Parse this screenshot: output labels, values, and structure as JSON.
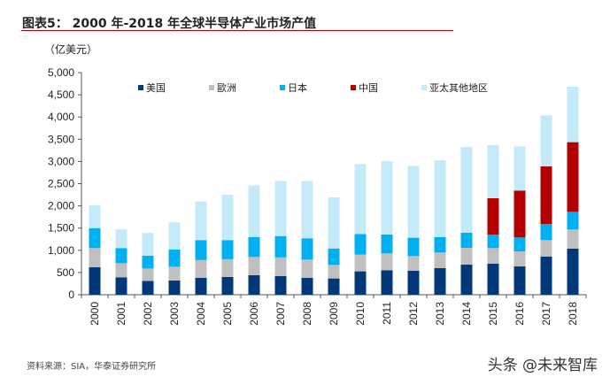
{
  "title": "图表5：  2000 年-2018 年全球半导体产业市场产值",
  "source": "资料来源：SIA，华泰证券研究所",
  "watermark": "头条 @未来智库",
  "chart_data": {
    "type": "bar",
    "stacked": true,
    "title": "",
    "ylabel": "（亿美元）",
    "xlabel": "",
    "ylim": [
      0,
      5000
    ],
    "yticks": [
      0,
      500,
      1000,
      1500,
      2000,
      2500,
      3000,
      3500,
      4000,
      4500,
      5000
    ],
    "ytick_labels": [
      "0",
      "500",
      "1,000",
      "1,500",
      "2,000",
      "2,500",
      "3,000",
      "3,500",
      "4,000",
      "4,500",
      "5,000"
    ],
    "grid": false,
    "legend_position": "top",
    "categories": [
      "2000",
      "2001",
      "2002",
      "2003",
      "2004",
      "2005",
      "2006",
      "2007",
      "2008",
      "2009",
      "2010",
      "2011",
      "2012",
      "2013",
      "2014",
      "2015",
      "2016",
      "2017",
      "2018"
    ],
    "series": [
      {
        "name": "美国",
        "color": "#003878",
        "values": [
          620,
          390,
          310,
          320,
          380,
          400,
          440,
          420,
          380,
          366,
          526,
          552,
          538,
          598,
          677,
          697,
          637,
          857,
          1036
        ]
      },
      {
        "name": "歐洲",
        "color": "#bfbfbf",
        "values": [
          430,
          320,
          280,
          310,
          400,
          400,
          410,
          420,
          410,
          305,
          378,
          378,
          332,
          352,
          379,
          353,
          339,
          372,
          432
        ]
      },
      {
        "name": "日本",
        "color": "#00b0f0",
        "values": [
          450,
          340,
          290,
          390,
          450,
          430,
          450,
          480,
          480,
          370,
          464,
          425,
          413,
          345,
          338,
          304,
          313,
          365,
          398
        ]
      },
      {
        "name": "中国",
        "color": "#b30000",
        "values": [
          0,
          0,
          0,
          0,
          0,
          0,
          0,
          0,
          0,
          0,
          0,
          0,
          0,
          0,
          0,
          817,
          1056,
          1294,
          1568
        ]
      },
      {
        "name": "亚太其他地区",
        "color": "#c5eaf9",
        "values": [
          510,
          420,
          510,
          610,
          870,
          1020,
          1160,
          1240,
          1290,
          1150,
          1574,
          1653,
          1619,
          1733,
          1933,
          1195,
          995,
          1150,
          1247
        ]
      }
    ]
  }
}
